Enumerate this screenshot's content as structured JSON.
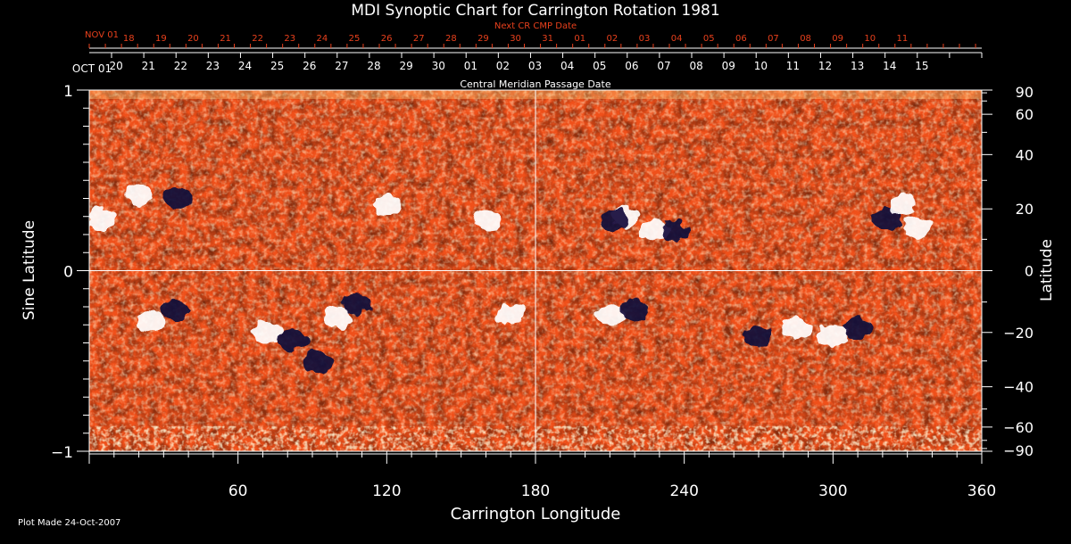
{
  "chart_data": {
    "type": "heatmap",
    "title": "MDI Synoptic Chart for Carrington Rotation 1981",
    "xlabel": "Carrington Longitude",
    "ylabel_left": "Sine Latitude",
    "ylabel_right": "Latitude",
    "x_range": [
      0,
      360
    ],
    "y_range": [
      -1,
      1
    ],
    "x_ticks": [
      60,
      120,
      180,
      240,
      300,
      360
    ],
    "y_ticks_left": [
      {
        "v": 1,
        "label": "1"
      },
      {
        "v": 0,
        "label": "0"
      },
      {
        "v": -1,
        "label": "−1"
      }
    ],
    "y_ticks_right": [
      90,
      60,
      40,
      20,
      0,
      -20,
      -40,
      -60,
      -90
    ],
    "grid_vertical": [
      180
    ],
    "grid_horizontal": [
      0
    ],
    "cmp_axis": {
      "label": "Central Meridian Passage Date",
      "start_label": "OCT 01",
      "dates": [
        "15",
        "14",
        "13",
        "12",
        "11",
        "10",
        "09",
        "08",
        "07",
        "06",
        "05",
        "04",
        "03",
        "02",
        "01",
        "30",
        "29",
        "28",
        "27",
        "26",
        "25",
        "24",
        "23",
        "22",
        "21",
        "20"
      ],
      "date_longitudes": [
        338,
        325,
        312,
        299,
        286,
        273,
        260,
        247,
        234,
        221,
        208,
        195,
        182,
        169,
        156,
        143,
        130,
        117,
        104,
        91,
        78,
        65,
        52,
        39,
        26,
        13
      ]
    },
    "next_cmp_axis": {
      "label": "Next CR CMP Date",
      "start_label": "NOV 01",
      "dates": [
        "11",
        "10",
        "09",
        "08",
        "07",
        "06",
        "05",
        "04",
        "03",
        "02",
        "01",
        "31",
        "30",
        "29",
        "28",
        "27",
        "26",
        "25",
        "24",
        "23",
        "22",
        "21",
        "20",
        "19",
        "18"
      ],
      "date_longitudes": [
        338,
        325,
        312,
        299,
        286,
        273,
        260,
        247,
        234,
        221,
        208,
        195,
        182,
        169,
        156,
        143,
        130,
        117,
        104,
        91,
        78,
        65,
        52,
        39,
        26
      ]
    },
    "active_regions": [
      {
        "lon": 20,
        "sinlat": 0.42,
        "polarity": "positive"
      },
      {
        "lon": 35,
        "sinlat": 0.4,
        "polarity": "negative"
      },
      {
        "lon": 5,
        "sinlat": 0.28,
        "polarity": "positive"
      },
      {
        "lon": 25,
        "sinlat": -0.28,
        "polarity": "positive"
      },
      {
        "lon": 35,
        "sinlat": -0.22,
        "polarity": "negative"
      },
      {
        "lon": 72,
        "sinlat": -0.34,
        "polarity": "positive"
      },
      {
        "lon": 82,
        "sinlat": -0.38,
        "polarity": "negative"
      },
      {
        "lon": 100,
        "sinlat": -0.26,
        "polarity": "positive"
      },
      {
        "lon": 108,
        "sinlat": -0.18,
        "polarity": "negative"
      },
      {
        "lon": 92,
        "sinlat": -0.5,
        "polarity": "negative"
      },
      {
        "lon": 120,
        "sinlat": 0.36,
        "polarity": "positive"
      },
      {
        "lon": 160,
        "sinlat": 0.28,
        "polarity": "positive"
      },
      {
        "lon": 170,
        "sinlat": -0.24,
        "polarity": "positive"
      },
      {
        "lon": 216,
        "sinlat": 0.3,
        "polarity": "positive"
      },
      {
        "lon": 228,
        "sinlat": 0.22,
        "polarity": "positive"
      },
      {
        "lon": 212,
        "sinlat": 0.28,
        "polarity": "negative"
      },
      {
        "lon": 236,
        "sinlat": 0.22,
        "polarity": "negative"
      },
      {
        "lon": 210,
        "sinlat": -0.24,
        "polarity": "positive"
      },
      {
        "lon": 220,
        "sinlat": -0.22,
        "polarity": "negative"
      },
      {
        "lon": 285,
        "sinlat": -0.32,
        "polarity": "positive"
      },
      {
        "lon": 300,
        "sinlat": -0.36,
        "polarity": "positive"
      },
      {
        "lon": 270,
        "sinlat": -0.36,
        "polarity": "negative"
      },
      {
        "lon": 310,
        "sinlat": -0.32,
        "polarity": "negative"
      },
      {
        "lon": 322,
        "sinlat": 0.28,
        "polarity": "negative"
      },
      {
        "lon": 328,
        "sinlat": 0.36,
        "polarity": "positive"
      },
      {
        "lon": 334,
        "sinlat": 0.24,
        "polarity": "positive"
      }
    ]
  },
  "footer": {
    "plot_made": "Plot Made 24-Oct-2007"
  },
  "colors": {
    "background": "#000000",
    "neutral_field": "#f0501a",
    "positive_field": "#ffffff",
    "negative_field": "#120a3a",
    "axis": "#ffffff",
    "next_cmp_text": "#e8401c"
  }
}
